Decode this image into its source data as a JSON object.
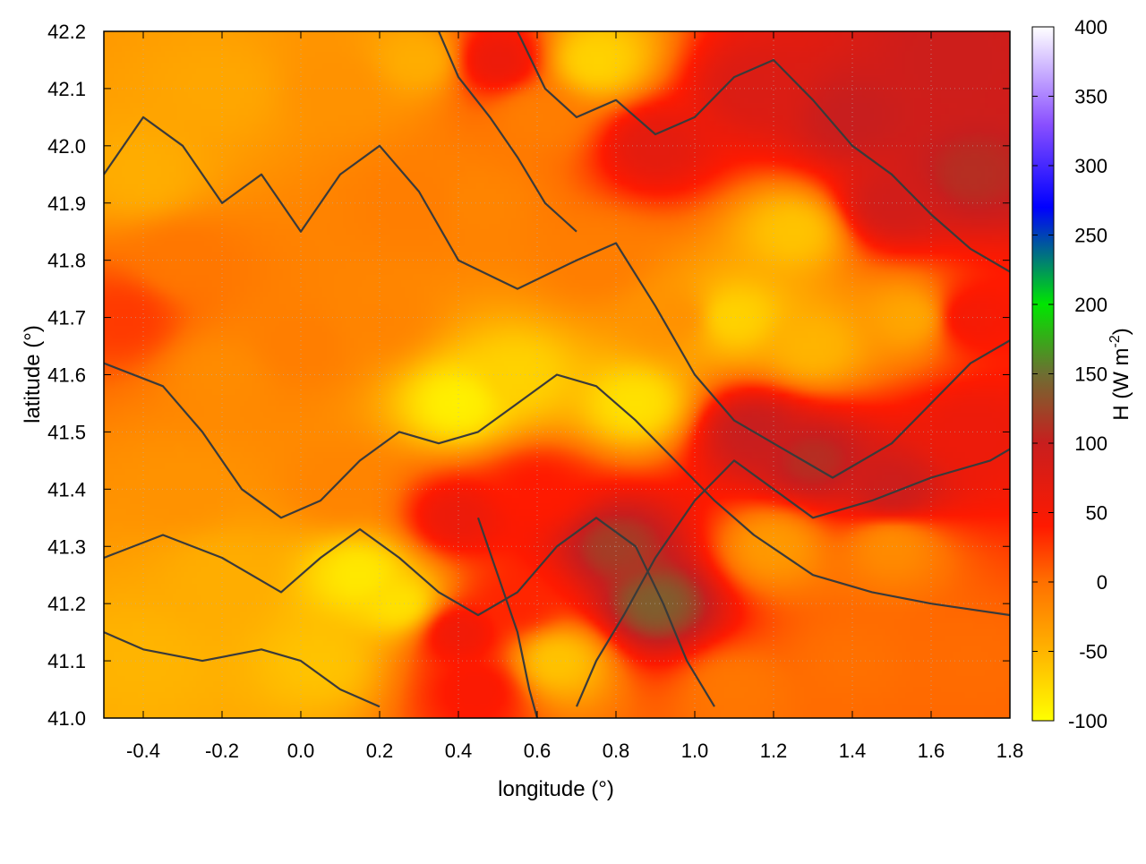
{
  "chart_data": {
    "type": "heatmap",
    "xlabel": "longitude (°)",
    "ylabel": "latitude (°)",
    "xlim": [
      -0.5,
      1.8
    ],
    "ylim": [
      41.0,
      42.2
    ],
    "x_ticks": [
      -0.4,
      -0.2,
      0.0,
      0.2,
      0.4,
      0.6,
      0.8,
      1.0,
      1.2,
      1.4,
      1.6,
      1.8
    ],
    "x_tick_labels": [
      "-0.4",
      "-0.2",
      "0.0",
      "0.2",
      "0.4",
      "0.6",
      "0.8",
      "1.0",
      "1.2",
      "1.4",
      "1.6",
      "1.8"
    ],
    "y_ticks": [
      41.0,
      41.1,
      41.2,
      41.3,
      41.4,
      41.5,
      41.6,
      41.7,
      41.8,
      41.9,
      42.0,
      42.1,
      42.2
    ],
    "y_tick_labels": [
      "41.0",
      "41.1",
      "41.2",
      "41.3",
      "41.4",
      "41.5",
      "41.6",
      "41.7",
      "41.8",
      "41.9",
      "42.0",
      "42.1",
      "42.2"
    ],
    "grid": true,
    "colorbar": {
      "label": "H (W m",
      "label_superscript": "-2",
      "label_suffix": ")",
      "range": [
        -100,
        400
      ],
      "ticks": [
        -100,
        -50,
        0,
        50,
        100,
        150,
        200,
        250,
        300,
        350,
        400
      ],
      "tick_labels": [
        "-100",
        "-50",
        "0",
        "50",
        "100",
        "150",
        "200",
        "250",
        "300",
        "350",
        "400"
      ],
      "stops": [
        {
          "value": -100,
          "color": "#ffff00"
        },
        {
          "value": -50,
          "color": "#ffb400"
        },
        {
          "value": 0,
          "color": "#ff7000"
        },
        {
          "value": 40,
          "color": "#ff1a00"
        },
        {
          "value": 100,
          "color": "#c81e1e"
        },
        {
          "value": 150,
          "color": "#6e6e32"
        },
        {
          "value": 200,
          "color": "#00e600"
        },
        {
          "value": 270,
          "color": "#0000ff"
        },
        {
          "value": 330,
          "color": "#8a50ff"
        },
        {
          "value": 400,
          "color": "#ffffff"
        }
      ]
    },
    "field_anchors": [
      {
        "x": -0.4,
        "y": 41.1,
        "value": -50
      },
      {
        "x": -0.2,
        "y": 41.25,
        "value": -45
      },
      {
        "x": 0.05,
        "y": 41.1,
        "value": -60
      },
      {
        "x": 0.15,
        "y": 41.25,
        "value": -85
      },
      {
        "x": 0.25,
        "y": 41.2,
        "value": -80
      },
      {
        "x": 0.4,
        "y": 41.15,
        "value": 55
      },
      {
        "x": 0.45,
        "y": 41.05,
        "value": 45
      },
      {
        "x": 0.55,
        "y": 41.2,
        "value": 35
      },
      {
        "x": 0.65,
        "y": 41.1,
        "value": -60
      },
      {
        "x": 0.8,
        "y": 41.3,
        "value": 120
      },
      {
        "x": 0.9,
        "y": 41.2,
        "value": 140
      },
      {
        "x": 1.1,
        "y": 41.05,
        "value": -5
      },
      {
        "x": 1.4,
        "y": 41.1,
        "value": 0
      },
      {
        "x": 1.7,
        "y": 41.1,
        "value": 2
      },
      {
        "x": 1.2,
        "y": 41.3,
        "value": -30
      },
      {
        "x": 1.5,
        "y": 41.3,
        "value": -20
      },
      {
        "x": 1.15,
        "y": 41.5,
        "value": 100
      },
      {
        "x": 1.3,
        "y": 41.45,
        "value": 110
      },
      {
        "x": 1.5,
        "y": 41.4,
        "value": 95
      },
      {
        "x": 1.7,
        "y": 41.5,
        "value": 60
      },
      {
        "x": 0.6,
        "y": 41.4,
        "value": 40
      },
      {
        "x": 0.4,
        "y": 41.35,
        "value": 60
      },
      {
        "x": 0.1,
        "y": 41.4,
        "value": -15
      },
      {
        "x": -0.3,
        "y": 41.4,
        "value": -25
      },
      {
        "x": -0.45,
        "y": 41.7,
        "value": 25
      },
      {
        "x": -0.2,
        "y": 41.6,
        "value": -20
      },
      {
        "x": 0.0,
        "y": 41.65,
        "value": -10
      },
      {
        "x": 0.2,
        "y": 41.7,
        "value": -15
      },
      {
        "x": 0.4,
        "y": 41.55,
        "value": -90
      },
      {
        "x": 0.55,
        "y": 41.6,
        "value": -70
      },
      {
        "x": 0.85,
        "y": 41.55,
        "value": -80
      },
      {
        "x": 0.95,
        "y": 41.7,
        "value": -25
      },
      {
        "x": 0.75,
        "y": 41.8,
        "value": -10
      },
      {
        "x": 1.1,
        "y": 41.7,
        "value": -70
      },
      {
        "x": 1.3,
        "y": 41.65,
        "value": -50
      },
      {
        "x": 1.55,
        "y": 41.7,
        "value": -40
      },
      {
        "x": 1.7,
        "y": 41.7,
        "value": 50
      },
      {
        "x": 1.25,
        "y": 41.85,
        "value": -60
      },
      {
        "x": 1.5,
        "y": 41.9,
        "value": 90
      },
      {
        "x": 1.7,
        "y": 41.95,
        "value": 110
      },
      {
        "x": 1.4,
        "y": 42.05,
        "value": 100
      },
      {
        "x": 1.65,
        "y": 42.15,
        "value": 95
      },
      {
        "x": 1.15,
        "y": 42.1,
        "value": 80
      },
      {
        "x": 0.9,
        "y": 42.0,
        "value": 70
      },
      {
        "x": 0.75,
        "y": 42.15,
        "value": -70
      },
      {
        "x": 0.6,
        "y": 42.05,
        "value": -10
      },
      {
        "x": 0.45,
        "y": 41.9,
        "value": -15
      },
      {
        "x": 0.3,
        "y": 41.9,
        "value": -10
      },
      {
        "x": 0.1,
        "y": 42.1,
        "value": -25
      },
      {
        "x": -0.2,
        "y": 42.1,
        "value": -40
      },
      {
        "x": -0.4,
        "y": 41.95,
        "value": -45
      },
      {
        "x": -0.3,
        "y": 41.8,
        "value": -5
      },
      {
        "x": 0.5,
        "y": 42.15,
        "value": 60
      },
      {
        "x": 0.3,
        "y": 42.15,
        "value": -45
      }
    ],
    "contour_lines": [
      [
        [
          -0.5,
          41.95
        ],
        [
          -0.4,
          42.05
        ],
        [
          -0.3,
          42.0
        ],
        [
          -0.2,
          41.9
        ],
        [
          -0.1,
          41.95
        ],
        [
          0.0,
          41.85
        ],
        [
          0.1,
          41.95
        ],
        [
          0.2,
          42.0
        ],
        [
          0.3,
          41.92
        ],
        [
          0.4,
          41.8
        ],
        [
          0.55,
          41.75
        ],
        [
          0.7,
          41.8
        ],
        [
          0.8,
          41.83
        ],
        [
          0.9,
          41.72
        ],
        [
          1.0,
          41.6
        ],
        [
          1.1,
          41.52
        ],
        [
          1.2,
          41.48
        ],
        [
          1.35,
          41.42
        ],
        [
          1.5,
          41.48
        ],
        [
          1.6,
          41.55
        ],
        [
          1.7,
          41.62
        ],
        [
          1.8,
          41.66
        ]
      ],
      [
        [
          -0.5,
          41.62
        ],
        [
          -0.35,
          41.58
        ],
        [
          -0.25,
          41.5
        ],
        [
          -0.15,
          41.4
        ],
        [
          -0.05,
          41.35
        ],
        [
          0.05,
          41.38
        ],
        [
          0.15,
          41.45
        ],
        [
          0.25,
          41.5
        ],
        [
          0.35,
          41.48
        ],
        [
          0.45,
          41.5
        ],
        [
          0.55,
          41.55
        ],
        [
          0.65,
          41.6
        ],
        [
          0.75,
          41.58
        ],
        [
          0.85,
          41.52
        ],
        [
          0.95,
          41.45
        ],
        [
          1.05,
          41.38
        ],
        [
          1.15,
          41.32
        ],
        [
          1.3,
          41.25
        ],
        [
          1.45,
          41.22
        ],
        [
          1.6,
          41.2
        ],
        [
          1.8,
          41.18
        ]
      ],
      [
        [
          -0.5,
          41.28
        ],
        [
          -0.35,
          41.32
        ],
        [
          -0.2,
          41.28
        ],
        [
          -0.05,
          41.22
        ],
        [
          0.05,
          41.28
        ],
        [
          0.15,
          41.33
        ],
        [
          0.25,
          41.28
        ],
        [
          0.35,
          41.22
        ],
        [
          0.45,
          41.18
        ],
        [
          0.55,
          41.22
        ],
        [
          0.65,
          41.3
        ],
        [
          0.75,
          41.35
        ],
        [
          0.85,
          41.3
        ],
        [
          0.92,
          41.2
        ],
        [
          0.98,
          41.1
        ],
        [
          1.05,
          41.02
        ]
      ],
      [
        [
          -0.5,
          41.15
        ],
        [
          -0.4,
          41.12
        ],
        [
          -0.25,
          41.1
        ],
        [
          -0.1,
          41.12
        ],
        [
          0.0,
          41.1
        ],
        [
          0.1,
          41.05
        ],
        [
          0.2,
          41.02
        ]
      ],
      [
        [
          0.55,
          42.2
        ],
        [
          0.62,
          42.1
        ],
        [
          0.7,
          42.05
        ],
        [
          0.8,
          42.08
        ],
        [
          0.9,
          42.02
        ],
        [
          1.0,
          42.05
        ],
        [
          1.1,
          42.12
        ],
        [
          1.2,
          42.15
        ],
        [
          1.3,
          42.08
        ],
        [
          1.4,
          42.0
        ],
        [
          1.5,
          41.95
        ],
        [
          1.6,
          41.88
        ],
        [
          1.7,
          41.82
        ],
        [
          1.8,
          41.78
        ]
      ],
      [
        [
          0.35,
          42.2
        ],
        [
          0.4,
          42.12
        ],
        [
          0.48,
          42.05
        ],
        [
          0.55,
          41.98
        ],
        [
          0.62,
          41.9
        ],
        [
          0.7,
          41.85
        ]
      ],
      [
        [
          0.45,
          41.35
        ],
        [
          0.5,
          41.25
        ],
        [
          0.55,
          41.15
        ],
        [
          0.58,
          41.05
        ],
        [
          0.6,
          41.0
        ]
      ],
      [
        [
          0.7,
          41.02
        ],
        [
          0.75,
          41.1
        ],
        [
          0.82,
          41.18
        ],
        [
          0.9,
          41.28
        ],
        [
          1.0,
          41.38
        ],
        [
          1.1,
          41.45
        ],
        [
          1.2,
          41.4
        ],
        [
          1.3,
          41.35
        ],
        [
          1.45,
          41.38
        ],
        [
          1.6,
          41.42
        ],
        [
          1.75,
          41.45
        ],
        [
          1.8,
          41.47
        ]
      ]
    ]
  }
}
